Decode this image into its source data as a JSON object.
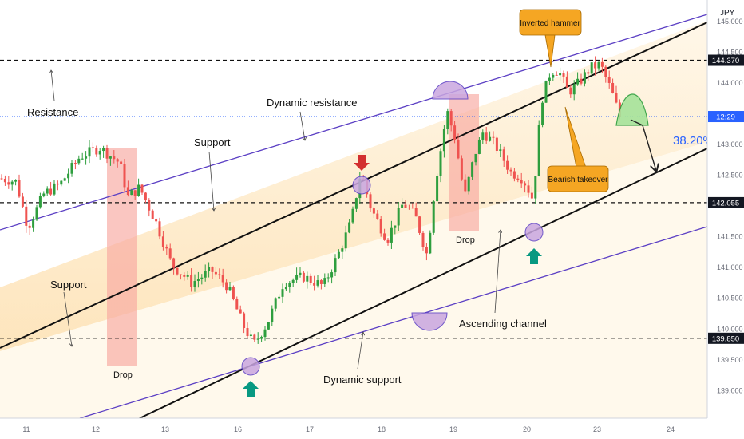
{
  "chart_data": {
    "type": "candlestick",
    "currency": "JPY",
    "x_ticks": [
      "11",
      "12",
      "13",
      "16",
      "17",
      "18",
      "19",
      "20",
      "23",
      "24"
    ],
    "y_ticks": [
      "145.000",
      "144.500",
      "144.000",
      "143.500",
      "143.000",
      "142.500",
      "142.000",
      "141.500",
      "141.000",
      "140.500",
      "140.000",
      "139.500",
      "139.000"
    ],
    "ylim": [
      138.55,
      145.35
    ],
    "price_labels": {
      "resistance": {
        "value": 144.37,
        "text": "144.370"
      },
      "support": {
        "value": 142.055,
        "text": "142.055"
      },
      "low_support": {
        "value": 139.85,
        "text": "139.850"
      },
      "current": {
        "value": 143.455,
        "text": "12:29"
      }
    },
    "annotations": {
      "resistance": "Resistance",
      "dynamic_resistance": "Dynamic resistance",
      "support_upper": "Support",
      "support_lower": "Support",
      "drop_1": "Drop",
      "drop_2": "Drop",
      "dynamic_support": "Dynamic support",
      "ascending_channel": "Ascending channel",
      "inverted_hammer": "Inverted hammer",
      "bearish_takeover": "Bearish takeover",
      "fib_level": "38.20%"
    },
    "colors": {
      "bull": "#26a69a",
      "bullCandle": "#2e9e3e",
      "bear": "#ef5350",
      "channel": "#111111",
      "dynamic": "#5b3fc4",
      "callout": "#f5a623",
      "currentLine": "#2962ff",
      "drop_zone": "#f7a8a0",
      "fib_text": "#2962ff"
    }
  }
}
